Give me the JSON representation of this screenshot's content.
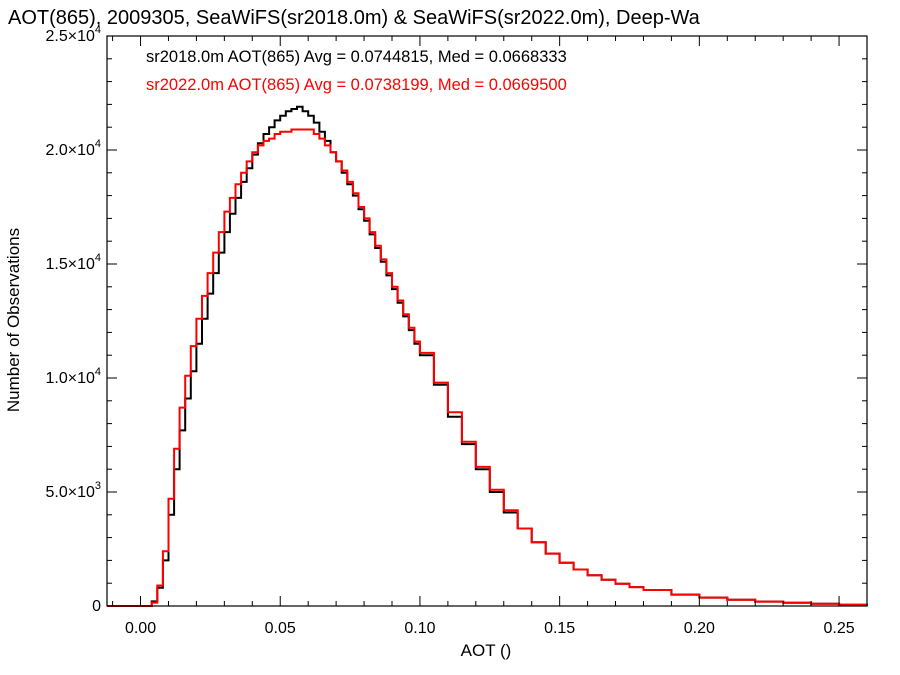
{
  "chart_data": {
    "type": "line",
    "title": "AOT(865), 2009305, SeaWiFS(sr2018.0m) & SeaWiFS(sr2022.0m), Deep-Wa",
    "xlabel": "AOT ()",
    "ylabel": "Number of Observations",
    "xlim": [
      -0.012,
      0.26
    ],
    "ylim": [
      0,
      25000
    ],
    "grid": false,
    "legend_position": "top-left",
    "x_ticks": [
      0.0,
      0.05,
      0.1,
      0.15,
      0.2,
      0.25
    ],
    "x_tick_labels": [
      "0.00",
      "0.05",
      "0.10",
      "0.15",
      "0.20",
      "0.25"
    ],
    "y_ticks": [
      0,
      5000,
      10000,
      15000,
      20000,
      25000
    ],
    "y_tick_labels": [
      {
        "base": "0",
        "exp": ""
      },
      {
        "base": "5.0×10",
        "exp": "3"
      },
      {
        "base": "1.0×10",
        "exp": "4"
      },
      {
        "base": "1.5×10",
        "exp": "4"
      },
      {
        "base": "2.0×10",
        "exp": "4"
      },
      {
        "base": "2.5×10",
        "exp": "4"
      }
    ],
    "series": [
      {
        "name": "sr2018.0m",
        "legend_label": "sr2018.0m AOT(865) Avg = 0.0744815, Med = 0.0668333",
        "color": "#000000",
        "x": [
          -0.012,
          0.0,
          0.004,
          0.006,
          0.008,
          0.01,
          0.012,
          0.014,
          0.016,
          0.018,
          0.02,
          0.022,
          0.024,
          0.026,
          0.028,
          0.03,
          0.032,
          0.034,
          0.036,
          0.038,
          0.04,
          0.042,
          0.044,
          0.046,
          0.048,
          0.05,
          0.052,
          0.054,
          0.056,
          0.058,
          0.06,
          0.062,
          0.064,
          0.066,
          0.068,
          0.07,
          0.072,
          0.074,
          0.076,
          0.078,
          0.08,
          0.082,
          0.084,
          0.086,
          0.088,
          0.09,
          0.092,
          0.094,
          0.096,
          0.098,
          0.1,
          0.105,
          0.11,
          0.115,
          0.12,
          0.125,
          0.13,
          0.135,
          0.14,
          0.145,
          0.15,
          0.155,
          0.16,
          0.165,
          0.17,
          0.175,
          0.18,
          0.19,
          0.2,
          0.21,
          0.22,
          0.23,
          0.24,
          0.25,
          0.26
        ],
        "y": [
          0,
          0,
          200,
          800,
          2000,
          4000,
          6000,
          7700,
          9100,
          10300,
          11500,
          12600,
          13700,
          14600,
          15500,
          16400,
          17200,
          17900,
          18600,
          19200,
          19800,
          20300,
          20700,
          21000,
          21300,
          21500,
          21700,
          21800,
          21900,
          21700,
          21500,
          21200,
          20800,
          20400,
          19900,
          19500,
          19000,
          18500,
          18000,
          17400,
          16900,
          16300,
          15700,
          15100,
          14500,
          13900,
          13300,
          12700,
          12100,
          11500,
          11000,
          9700,
          8300,
          7100,
          6000,
          5000,
          4100,
          3400,
          2800,
          2300,
          1900,
          1600,
          1350,
          1150,
          980,
          830,
          700,
          500,
          370,
          270,
          195,
          140,
          95,
          55,
          0
        ]
      },
      {
        "name": "sr2022.0m",
        "legend_label": "sr2022.0m AOT(865) Avg = 0.0738199, Med = 0.0669500",
        "color": "#ff0000",
        "x": [
          -0.012,
          0.0,
          0.004,
          0.006,
          0.008,
          0.01,
          0.012,
          0.014,
          0.016,
          0.018,
          0.02,
          0.022,
          0.024,
          0.026,
          0.028,
          0.03,
          0.032,
          0.034,
          0.036,
          0.038,
          0.04,
          0.042,
          0.044,
          0.046,
          0.048,
          0.05,
          0.052,
          0.054,
          0.056,
          0.058,
          0.06,
          0.062,
          0.064,
          0.066,
          0.068,
          0.07,
          0.072,
          0.074,
          0.076,
          0.078,
          0.08,
          0.082,
          0.084,
          0.086,
          0.088,
          0.09,
          0.092,
          0.094,
          0.096,
          0.098,
          0.1,
          0.105,
          0.11,
          0.115,
          0.12,
          0.125,
          0.13,
          0.135,
          0.14,
          0.145,
          0.15,
          0.155,
          0.16,
          0.165,
          0.17,
          0.175,
          0.18,
          0.19,
          0.2,
          0.21,
          0.22,
          0.23,
          0.24,
          0.25,
          0.26
        ],
        "y": [
          0,
          0,
          150,
          900,
          2400,
          4700,
          6900,
          8700,
          10100,
          11400,
          12600,
          13600,
          14600,
          15500,
          16400,
          17300,
          17900,
          18500,
          19000,
          19500,
          19900,
          20200,
          20400,
          20500,
          20700,
          20800,
          20800,
          20900,
          20900,
          20900,
          20900,
          20700,
          20500,
          20200,
          19900,
          19500,
          19100,
          18600,
          18100,
          17500,
          17000,
          16400,
          15800,
          15200,
          14600,
          14000,
          13400,
          12800,
          12200,
          11600,
          11100,
          9800,
          8500,
          7200,
          6100,
          5100,
          4200,
          3400,
          2800,
          2300,
          1900,
          1600,
          1350,
          1150,
          980,
          830,
          700,
          500,
          370,
          270,
          195,
          140,
          95,
          55,
          0
        ]
      }
    ]
  }
}
